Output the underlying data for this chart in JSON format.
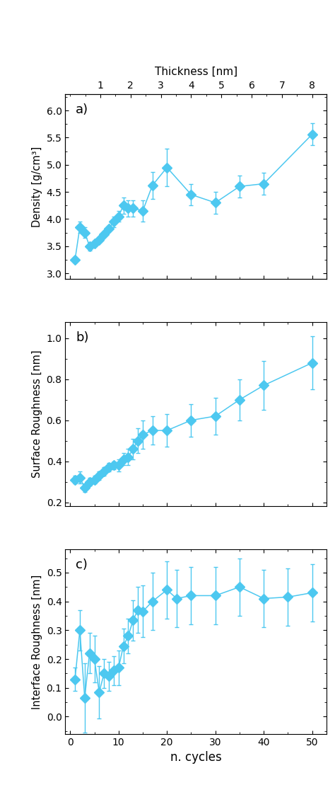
{
  "color": "#4DC8F0",
  "background_color": "#ffffff",
  "thickness_label": "Thickness [nm]",
  "cycles_label": "n. cycles",
  "panel_a_label": "a)",
  "panel_a_ylabel": "Density [g/cm³]",
  "panel_a_ylim": [
    2.9,
    6.3
  ],
  "panel_a_yticks": [
    3.0,
    3.5,
    4.0,
    4.5,
    5.0,
    5.5,
    6.0
  ],
  "panel_a_x": [
    1,
    2,
    3,
    4,
    5,
    6,
    7,
    8,
    9,
    10,
    11,
    12,
    13,
    15,
    17,
    20,
    25,
    30,
    35,
    40,
    50
  ],
  "panel_a_y": [
    3.25,
    3.85,
    3.75,
    3.5,
    3.55,
    3.62,
    3.72,
    3.82,
    3.95,
    4.05,
    4.25,
    4.2,
    4.2,
    4.15,
    4.62,
    4.95,
    4.45,
    4.3,
    4.6,
    4.65,
    5.56
  ],
  "panel_a_yerr": [
    0.05,
    0.1,
    0.1,
    0.08,
    0.05,
    0.05,
    0.05,
    0.05,
    0.1,
    0.1,
    0.15,
    0.15,
    0.15,
    0.2,
    0.25,
    0.35,
    0.2,
    0.2,
    0.2,
    0.2,
    0.2
  ],
  "panel_b_label": "b)",
  "panel_b_ylabel": "Surface Roughness [nm]",
  "panel_b_ylim": [
    0.18,
    1.08
  ],
  "panel_b_yticks": [
    0.2,
    0.4,
    0.6,
    0.8,
    1.0
  ],
  "panel_b_x": [
    1,
    2,
    3,
    4,
    5,
    6,
    7,
    8,
    9,
    10,
    11,
    12,
    13,
    14,
    15,
    17,
    20,
    25,
    30,
    35,
    40,
    50
  ],
  "panel_b_y": [
    0.31,
    0.32,
    0.27,
    0.3,
    0.31,
    0.33,
    0.35,
    0.37,
    0.38,
    0.38,
    0.41,
    0.42,
    0.46,
    0.5,
    0.53,
    0.55,
    0.55,
    0.6,
    0.62,
    0.7,
    0.77,
    0.88
  ],
  "panel_b_yerr": [
    0.02,
    0.03,
    0.02,
    0.02,
    0.02,
    0.02,
    0.02,
    0.02,
    0.02,
    0.03,
    0.03,
    0.04,
    0.05,
    0.06,
    0.07,
    0.07,
    0.08,
    0.08,
    0.09,
    0.1,
    0.12,
    0.13
  ],
  "panel_c_label": "c)",
  "panel_c_ylabel": "Interface Roughness [nm]",
  "panel_c_ylim": [
    -0.06,
    0.58
  ],
  "panel_c_yticks": [
    0.0,
    0.1,
    0.2,
    0.3,
    0.4,
    0.5
  ],
  "panel_c_x": [
    1,
    2,
    3,
    4,
    5,
    6,
    7,
    8,
    9,
    10,
    11,
    12,
    13,
    14,
    15,
    17,
    20,
    22,
    25,
    30,
    35,
    40,
    45,
    50
  ],
  "panel_c_y": [
    0.13,
    0.3,
    0.065,
    0.22,
    0.2,
    0.085,
    0.15,
    0.14,
    0.16,
    0.17,
    0.245,
    0.28,
    0.335,
    0.37,
    0.365,
    0.4,
    0.44,
    0.41,
    0.42,
    0.42,
    0.45,
    0.41,
    0.415,
    0.43
  ],
  "panel_c_yerr": [
    0.04,
    0.07,
    0.12,
    0.07,
    0.08,
    0.09,
    0.05,
    0.05,
    0.05,
    0.06,
    0.06,
    0.06,
    0.07,
    0.08,
    0.09,
    0.1,
    0.1,
    0.1,
    0.1,
    0.1,
    0.1,
    0.1,
    0.1,
    0.1
  ],
  "xlim": [
    -1,
    53
  ],
  "xticks": [
    0,
    10,
    20,
    30,
    40,
    50
  ],
  "top_xticks": [
    1,
    2,
    3,
    4,
    5,
    6,
    7,
    8
  ],
  "cycles_per_nm": 6.25
}
